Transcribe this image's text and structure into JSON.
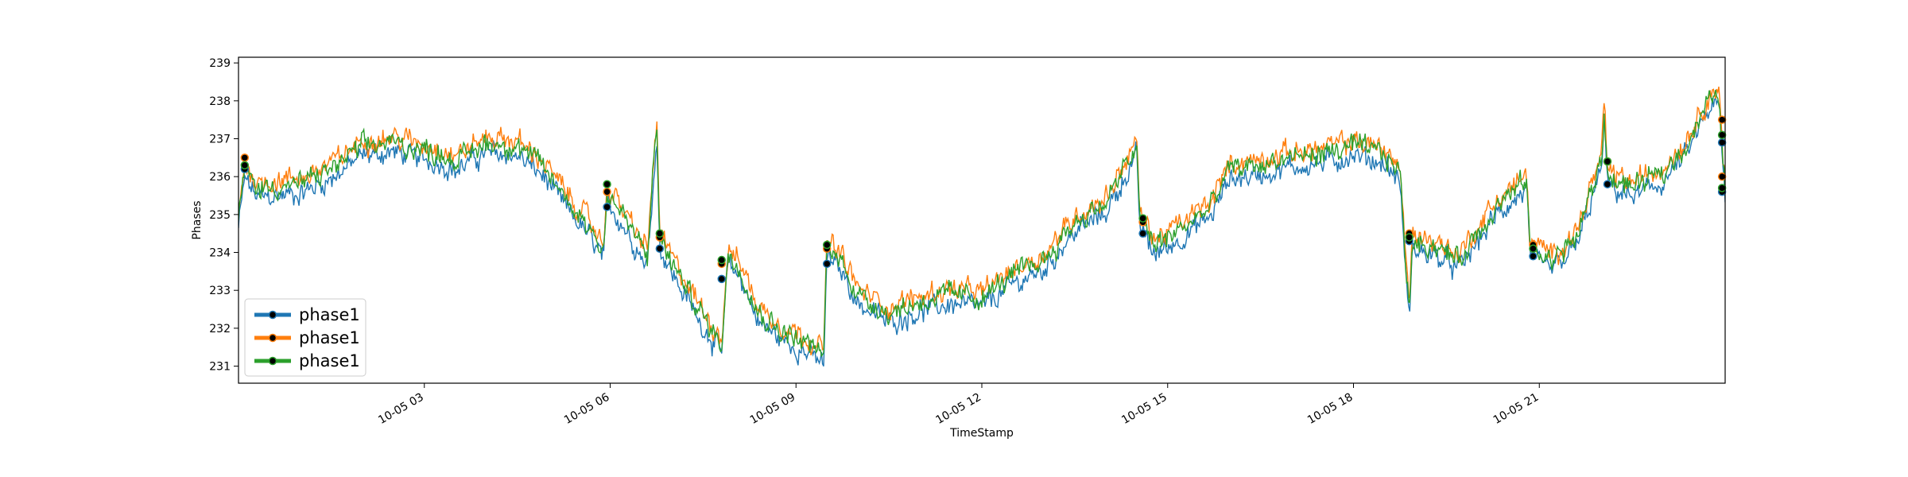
{
  "chart_data": {
    "type": "line",
    "title": "",
    "xlabel": "TimeStamp",
    "ylabel": "Phases",
    "x_range_hours": [
      0.0,
      24.0
    ],
    "ylim": [
      230.55,
      239.15
    ],
    "yticks": [
      231,
      232,
      233,
      234,
      235,
      236,
      237,
      238,
      239
    ],
    "xticks": [
      {
        "hour": 3,
        "label": "10-05 03"
      },
      {
        "hour": 6,
        "label": "10-05 06"
      },
      {
        "hour": 9,
        "label": "10-05 09"
      },
      {
        "hour": 12,
        "label": "10-05 12"
      },
      {
        "hour": 15,
        "label": "10-05 15"
      },
      {
        "hour": 18,
        "label": "10-05 18"
      },
      {
        "hour": 21,
        "label": "10-05 21"
      }
    ],
    "grid": false,
    "legend_position": "lower-left",
    "series": [
      {
        "name": "phase1",
        "color": "#1f77b4",
        "offset": -0.25,
        "noise": 0.35,
        "markers": [
          [
            0.1,
            236.2
          ],
          [
            5.95,
            235.2
          ],
          [
            6.8,
            234.1
          ],
          [
            7.8,
            233.3
          ],
          [
            9.5,
            233.7
          ],
          [
            14.6,
            234.5
          ],
          [
            18.9,
            234.3
          ],
          [
            20.9,
            233.9
          ],
          [
            22.1,
            235.8
          ],
          [
            23.95,
            235.6
          ],
          [
            23.95,
            236.9
          ]
        ]
      },
      {
        "name": "phase1",
        "color": "#ff7f0e",
        "offset": 0.15,
        "noise": 0.35,
        "markers": [
          [
            0.1,
            236.5
          ],
          [
            5.95,
            235.6
          ],
          [
            6.8,
            234.4
          ],
          [
            7.8,
            233.7
          ],
          [
            9.5,
            234.1
          ],
          [
            14.6,
            234.8
          ],
          [
            18.9,
            234.5
          ],
          [
            20.9,
            234.2
          ],
          [
            22.1,
            236.4
          ],
          [
            23.95,
            236.0
          ],
          [
            23.95,
            237.5
          ]
        ]
      },
      {
        "name": "phase1",
        "color": "#2ca02c",
        "offset": 0.0,
        "noise": 0.35,
        "markers": [
          [
            0.1,
            236.3
          ],
          [
            5.95,
            235.8
          ],
          [
            6.8,
            234.5
          ],
          [
            7.8,
            233.8
          ],
          [
            9.5,
            234.2
          ],
          [
            14.6,
            234.9
          ],
          [
            18.9,
            234.4
          ],
          [
            20.9,
            234.1
          ],
          [
            22.1,
            236.4
          ],
          [
            23.95,
            235.7
          ],
          [
            23.95,
            237.1
          ]
        ]
      }
    ],
    "base_profile": [
      [
        0.0,
        234.9
      ],
      [
        0.1,
        236.2
      ],
      [
        0.3,
        235.7
      ],
      [
        1.0,
        235.8
      ],
      [
        1.5,
        236.2
      ],
      [
        2.0,
        236.8
      ],
      [
        2.5,
        236.9
      ],
      [
        3.0,
        236.7
      ],
      [
        3.3,
        236.6
      ],
      [
        3.5,
        236.4
      ],
      [
        4.0,
        236.9
      ],
      [
        4.5,
        236.8
      ],
      [
        4.9,
        236.3
      ],
      [
        5.3,
        235.4
      ],
      [
        5.6,
        234.8
      ],
      [
        5.9,
        234.1
      ],
      [
        5.95,
        235.6
      ],
      [
        6.2,
        235.0
      ],
      [
        6.6,
        233.9
      ],
      [
        6.75,
        237.4
      ],
      [
        6.8,
        234.4
      ],
      [
        7.0,
        233.7
      ],
      [
        7.5,
        232.3
      ],
      [
        7.8,
        231.6
      ],
      [
        7.9,
        233.9
      ],
      [
        8.1,
        233.6
      ],
      [
        8.4,
        232.4
      ],
      [
        8.8,
        231.9
      ],
      [
        9.2,
        231.6
      ],
      [
        9.45,
        231.3
      ],
      [
        9.5,
        234.2
      ],
      [
        9.8,
        233.6
      ],
      [
        10.0,
        232.9
      ],
      [
        10.5,
        232.4
      ],
      [
        11.0,
        232.7
      ],
      [
        11.5,
        232.9
      ],
      [
        12.0,
        232.8
      ],
      [
        12.5,
        233.4
      ],
      [
        13.0,
        233.8
      ],
      [
        13.5,
        234.8
      ],
      [
        14.0,
        235.3
      ],
      [
        14.5,
        236.8
      ],
      [
        14.55,
        234.9
      ],
      [
        14.8,
        234.2
      ],
      [
        15.2,
        234.6
      ],
      [
        15.7,
        235.2
      ],
      [
        16.0,
        236.2
      ],
      [
        16.5,
        236.3
      ],
      [
        17.0,
        236.5
      ],
      [
        17.5,
        236.6
      ],
      [
        18.0,
        236.8
      ],
      [
        18.5,
        236.6
      ],
      [
        18.75,
        236.1
      ],
      [
        18.9,
        232.4
      ],
      [
        18.95,
        234.3
      ],
      [
        19.3,
        234.2
      ],
      [
        19.7,
        233.8
      ],
      [
        20.0,
        234.5
      ],
      [
        20.3,
        235.2
      ],
      [
        20.8,
        235.9
      ],
      [
        20.85,
        234.1
      ],
      [
        21.2,
        233.8
      ],
      [
        21.6,
        234.4
      ],
      [
        22.0,
        236.4
      ],
      [
        22.05,
        237.7
      ],
      [
        22.1,
        236.0
      ],
      [
        22.5,
        235.7
      ],
      [
        23.0,
        236.1
      ],
      [
        23.4,
        236.9
      ],
      [
        23.7,
        237.9
      ],
      [
        23.9,
        238.2
      ],
      [
        24.0,
        235.5
      ]
    ],
    "legend": [
      "phase1",
      "phase1",
      "phase1"
    ]
  }
}
